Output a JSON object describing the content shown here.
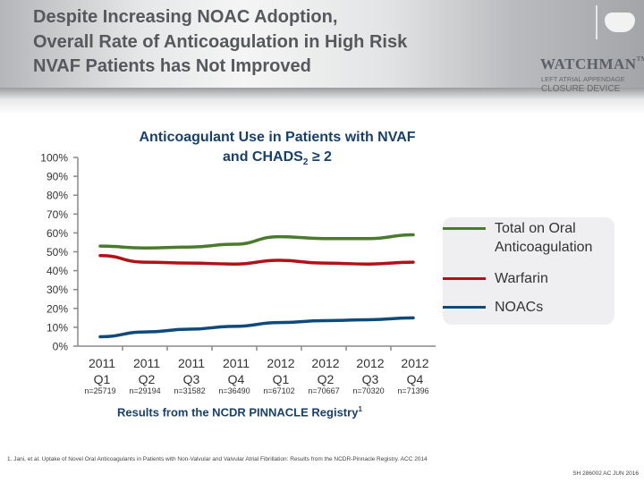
{
  "header": {
    "title_lines": [
      "Despite Increasing NOAC Adoption,",
      "Overall Rate of Anticoagulation in High Risk",
      "NVAF Patients has Not Improved"
    ]
  },
  "logo": {
    "word": "WATCHMAN",
    "tm": "TM",
    "sub1": "LEFT ATRIAL APPENDAGE",
    "sub2": "CLOSURE DEVICE"
  },
  "chart_data": {
    "type": "line",
    "title_line1": "Anticoagulant Use in Patients with NVAF",
    "title_line2_pre": "and CHADS",
    "title_line2_sub": "2",
    "title_line2_post": " ≥ 2",
    "categories": [
      [
        "2011",
        "Q1"
      ],
      [
        "2011",
        "Q2"
      ],
      [
        "2011",
        "Q3"
      ],
      [
        "2011",
        "Q4"
      ],
      [
        "2012",
        "Q1"
      ],
      [
        "2012",
        "Q2"
      ],
      [
        "2012",
        "Q3"
      ],
      [
        "2012",
        "Q4"
      ]
    ],
    "sample_sizes": [
      "n=25719",
      "n=29194",
      "n=31582",
      "n=36490",
      "n=67102",
      "n=70667",
      "n=70320",
      "n=71396"
    ],
    "yticks": [
      "0%",
      "10%",
      "20%",
      "30%",
      "40%",
      "50%",
      "60%",
      "70%",
      "80%",
      "90%",
      "100%"
    ],
    "ylim": [
      0,
      100
    ],
    "grid": false,
    "legend_placement": "right",
    "series": [
      {
        "name": "Total on Oral Anticoagulation",
        "name_lines": [
          "Total on Oral",
          "Anticoagulation"
        ],
        "color": "#4a7a2c",
        "values": [
          53,
          52,
          52.5,
          54,
          58,
          57,
          57,
          59
        ]
      },
      {
        "name": "Warfarin",
        "name_lines": [
          "Warfarin"
        ],
        "color": "#b01217",
        "values": [
          48,
          44.5,
          44,
          43.5,
          45.5,
          44,
          43.5,
          44.5
        ]
      },
      {
        "name": "NOACs",
        "name_lines": [
          "NOACs"
        ],
        "color": "#0f4a7a",
        "values": [
          5,
          7.5,
          9,
          10.5,
          12.5,
          13.5,
          14,
          15
        ]
      }
    ]
  },
  "registry": {
    "text": "Results from the NCDR PINNACLE Registry",
    "sup": "1"
  },
  "footnote": "1. Jani, et al. Uptake of Novel Oral Anticoagulants in Patients with Non-Valvular and Valvular Atrial Fibrillation: Results from the NCDR-Pinnacle Registry. ACC 2014",
  "code": "SH 286002 AC JUN 2016"
}
